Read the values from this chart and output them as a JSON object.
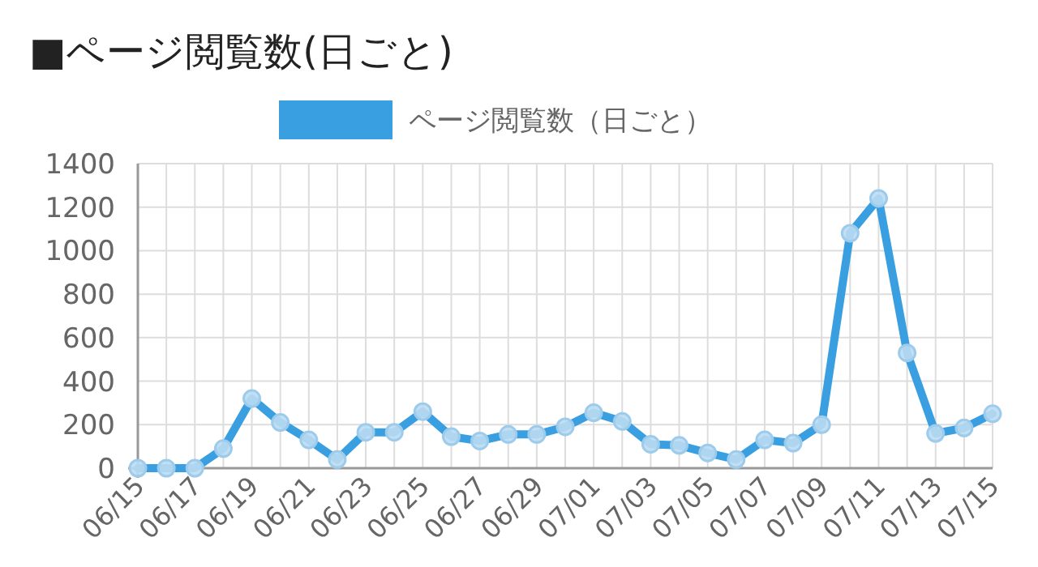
{
  "chart_data": {
    "type": "line",
    "title": "■ページ閲覧数(日ごと)",
    "categories": [
      "06/15",
      null,
      "06/17",
      null,
      "06/19",
      null,
      "06/21",
      null,
      "06/23",
      null,
      "06/25",
      null,
      "06/27",
      null,
      "06/29",
      null,
      "07/01",
      null,
      "07/03",
      null,
      "07/05",
      null,
      "07/07",
      null,
      "07/09",
      null,
      "07/11",
      null,
      "07/13",
      null,
      "07/15"
    ],
    "series": [
      {
        "name": "ページ閲覧数（日ごと）",
        "color": "#3a9fe0",
        "values": [
          0,
          0,
          0,
          90,
          320,
          210,
          130,
          40,
          165,
          165,
          260,
          145,
          125,
          155,
          155,
          190,
          255,
          215,
          110,
          105,
          70,
          40,
          130,
          115,
          200,
          1080,
          1240,
          530,
          160,
          185,
          250
        ]
      }
    ],
    "ylim": [
      0,
      1400
    ],
    "yticks": [
      0,
      200,
      400,
      600,
      800,
      1000,
      1200,
      1400
    ],
    "grid": true,
    "legend": "top",
    "marker": "circle",
    "line_style": "solid"
  }
}
